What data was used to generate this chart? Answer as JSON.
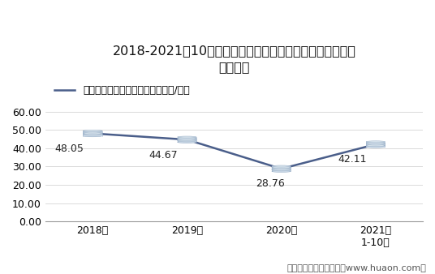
{
  "title_line1": "2018-2021年10月上海国际能源交易中心中质含硫原油期货",
  "title_line2": "成交均价",
  "legend_label": "中质含硫原油期货成交均价（万元/手）",
  "x_labels": [
    "2018年",
    "2019年",
    "2020年",
    "2021年\n1-10月"
  ],
  "x_values": [
    0,
    1,
    2,
    3
  ],
  "y_values": [
    48.05,
    44.67,
    28.76,
    42.11
  ],
  "annotations": [
    "48.05",
    "44.67",
    "28.76",
    "42.11"
  ],
  "ylim": [
    0,
    65
  ],
  "yticks": [
    0.0,
    10.0,
    20.0,
    30.0,
    40.0,
    50.0,
    60.0
  ],
  "line_color": "#4a5e8a",
  "coin_top_color": "#dde8f0",
  "coin_edge_color": "#9ab0c8",
  "coin_body_color": "#ccdae8",
  "footer": "制图：华经产业研究院（www.huaon.com）",
  "background_color": "#ffffff",
  "title_fontsize": 11.5,
  "legend_fontsize": 9,
  "tick_fontsize": 9,
  "annotation_fontsize": 9,
  "footer_fontsize": 8
}
